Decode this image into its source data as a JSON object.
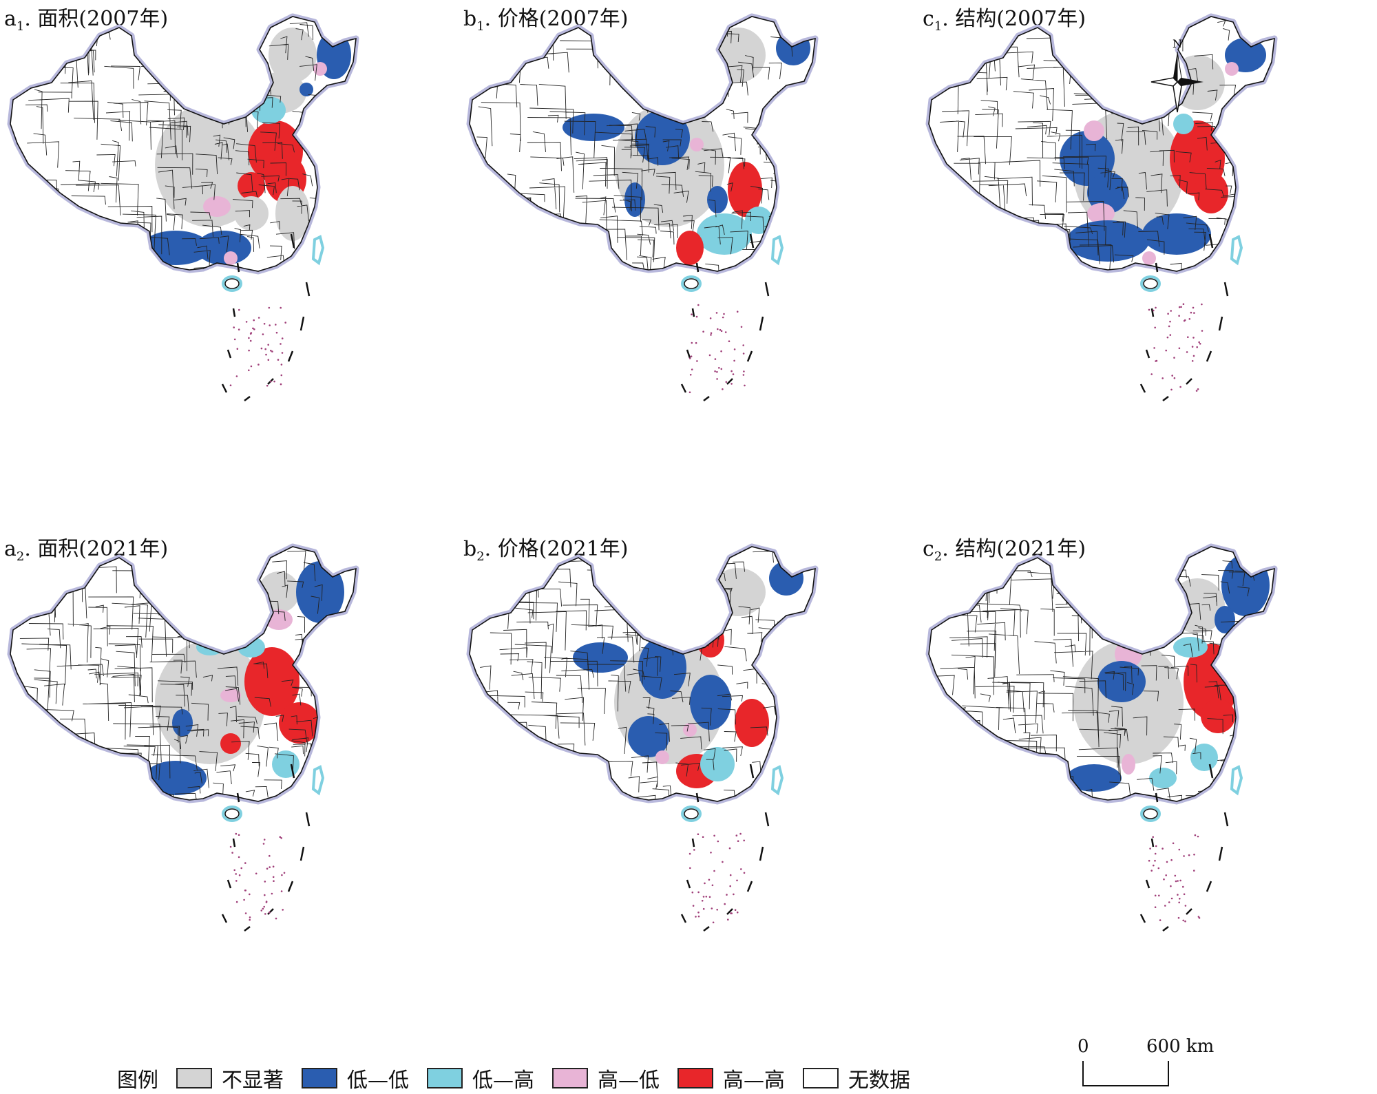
{
  "panels": [
    {
      "id": "a1",
      "letter": "a",
      "sub": "1",
      "title": ". 面积(2007年)",
      "scheme": "a1"
    },
    {
      "id": "b1",
      "letter": "b",
      "sub": "1",
      "title": ". 价格(2007年)",
      "scheme": "b1"
    },
    {
      "id": "c1",
      "letter": "c",
      "sub": "1",
      "title": ". 结构(2007年)",
      "scheme": "c1"
    },
    {
      "id": "a2",
      "letter": "a",
      "sub": "2",
      "title": ". 面积(2021年)",
      "scheme": "a2"
    },
    {
      "id": "b2",
      "letter": "b",
      "sub": "2",
      "title": ". 价格(2021年)",
      "scheme": "b2"
    },
    {
      "id": "c2",
      "letter": "c",
      "sub": "2",
      "title": ". 结构(2021年)",
      "scheme": "c2"
    }
  ],
  "legend": {
    "title": "图例",
    "items": [
      {
        "label": "不显著",
        "color": "#d4d4d4"
      },
      {
        "label": "低—低",
        "color": "#2a5db0"
      },
      {
        "label": "低—高",
        "color": "#7fd0e0"
      },
      {
        "label": "高—低",
        "color": "#e8b4d6"
      },
      {
        "label": "高—高",
        "color": "#e8262a"
      },
      {
        "label": "无数据",
        "color": "#ffffff"
      }
    ]
  },
  "scale": {
    "zero": "0",
    "max": "600 km"
  },
  "north": {
    "label": "N"
  },
  "colors": {
    "ns": "#d4d4d4",
    "ll": "#2a5db0",
    "lh": "#7fd0e0",
    "hl": "#e8b4d6",
    "hh": "#e8262a",
    "nd": "#ffffff",
    "halo": "#b8b8dc",
    "island": "#a0407a"
  }
}
